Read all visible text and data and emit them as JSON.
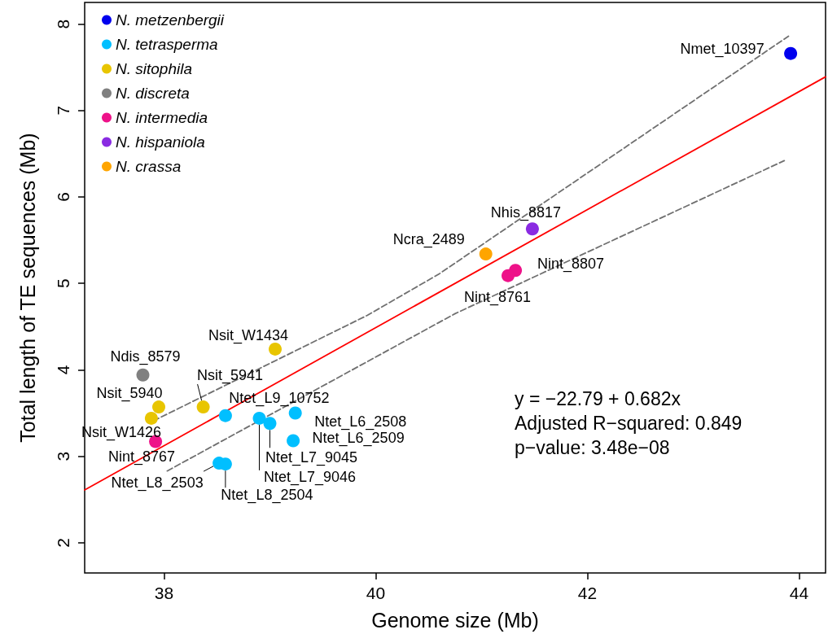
{
  "chart_data": {
    "type": "scatter",
    "xlabel": "Genome size (Mb)",
    "ylabel": "Total length of TE sequences (Mb)",
    "xlim": [
      37.25,
      44.25
    ],
    "xticks": [
      38,
      40,
      42,
      44
    ],
    "ylim": [
      1.65,
      8.25
    ],
    "yticks": [
      2,
      3,
      4,
      5,
      6,
      7,
      8
    ],
    "grid": false,
    "legend": "top left",
    "marker": "circle",
    "series": [
      {
        "name": "N. metzenbergii",
        "color": "#0000ee",
        "x": [
          43.92
        ],
        "values": [
          7.66
        ]
      },
      {
        "name": "N. tetrasperma",
        "color": "#00bfff",
        "x": [
          38.58,
          39.24,
          39.22,
          39.0,
          38.9,
          38.52,
          38.58
        ],
        "values": [
          3.47,
          3.5,
          3.18,
          3.38,
          3.44,
          2.92,
          2.91
        ]
      },
      {
        "name": "N. sitophila",
        "color": "#e8c500",
        "x": [
          39.05,
          37.95,
          37.88,
          38.37
        ],
        "values": [
          4.24,
          3.57,
          3.44,
          3.57
        ]
      },
      {
        "name": "N. discreta",
        "color": "#808080",
        "x": [
          37.8
        ],
        "values": [
          3.94
        ]
      },
      {
        "name": "N. intermedia",
        "color": "#ee1289",
        "x": [
          41.32,
          41.25,
          37.92
        ],
        "values": [
          5.15,
          5.09,
          3.17
        ]
      },
      {
        "name": "N. hispaniola",
        "color": "#8a2be2",
        "x": [
          41.48
        ],
        "values": [
          5.63
        ]
      },
      {
        "name": "N. crassa",
        "color": "#ffa500",
        "x": [
          41.04
        ],
        "values": [
          5.34
        ]
      },
      {
        "type": "line",
        "color": "#ff0000",
        "x": [
          37.25,
          44.25
        ],
        "values": [
          2.61,
          7.39
        ],
        "line_style": "solid",
        "marker": "none"
      },
      {
        "type": "line",
        "color": "#707070",
        "x": [
          37.9,
          39.92,
          40.6,
          43.9
        ],
        "values": [
          3.41,
          4.63,
          5.11,
          7.86
        ],
        "line_style": "dashed",
        "marker": "none"
      },
      {
        "type": "line",
        "color": "#707070",
        "x": [
          38.03,
          40.75,
          43.86
        ],
        "values": [
          2.83,
          4.65,
          6.42
        ],
        "line_style": "dashed",
        "marker": "none"
      }
    ],
    "annotations": [
      {
        "text": "Nmet_10397",
        "x": 43.92,
        "y": 7.66
      },
      {
        "text": "Ntet_L9_10752",
        "x": 38.58,
        "y": 3.47
      },
      {
        "text": "Ntet_L6_2508",
        "x": 39.24,
        "y": 3.5
      },
      {
        "text": "Ntet_L6_2509",
        "x": 39.22,
        "y": 3.18
      },
      {
        "text": "Ntet_L7_9045",
        "x": 39.0,
        "y": 3.38
      },
      {
        "text": "Ntet_L7_9046",
        "x": 38.9,
        "y": 3.44
      },
      {
        "text": "Ntet_L8_2503",
        "x": 38.52,
        "y": 2.92
      },
      {
        "text": "Ntet_L8_2504",
        "x": 38.58,
        "y": 2.91
      },
      {
        "text": "Nsit_W1434",
        "x": 39.05,
        "y": 4.24
      },
      {
        "text": "Nsit_5940",
        "x": 37.95,
        "y": 3.57
      },
      {
        "text": "Nsit_W1426",
        "x": 37.88,
        "y": 3.44
      },
      {
        "text": "Nsit_5941",
        "x": 38.37,
        "y": 3.57
      },
      {
        "text": "Ndis_8579",
        "x": 37.8,
        "y": 3.94
      },
      {
        "text": "Nint_8807",
        "x": 41.32,
        "y": 5.15
      },
      {
        "text": "Nint_8761",
        "x": 41.25,
        "y": 5.09
      },
      {
        "text": "Nint_8767",
        "x": 37.92,
        "y": 3.17
      },
      {
        "text": "Nhis_8817",
        "x": 41.48,
        "y": 5.63
      },
      {
        "text": "Ncra_2489",
        "x": 41.04,
        "y": 5.34
      },
      "y = −22.79 + 0.682x",
      "Adjusted R−squared: 0.849",
      "p−value: 3.48e−08"
    ]
  }
}
